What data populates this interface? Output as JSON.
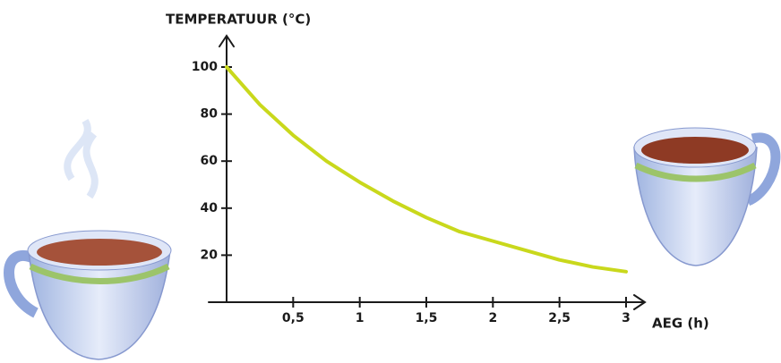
{
  "chart_data": {
    "type": "line",
    "y_label": "TEMPERATUUR (°C)",
    "x_label": "AEG (h)",
    "x": [
      0,
      0.25,
      0.5,
      0.75,
      1,
      1.25,
      1.5,
      1.75,
      2,
      2.25,
      2.5,
      2.75,
      3
    ],
    "values": [
      100,
      84,
      71,
      60,
      51,
      43,
      36,
      30,
      26,
      22,
      18,
      15,
      13
    ],
    "color": "#c9d81c",
    "xlim": [
      0,
      3
    ],
    "ylim": [
      0,
      100
    ],
    "xticks": [
      {
        "value": 0.5,
        "label": "0,5"
      },
      1,
      {
        "value": 1.5,
        "label": "1,5"
      },
      2,
      {
        "value": 2.5,
        "label": "2,5"
      },
      3
    ],
    "yticks": [
      20,
      40,
      60,
      80,
      100
    ]
  }
}
